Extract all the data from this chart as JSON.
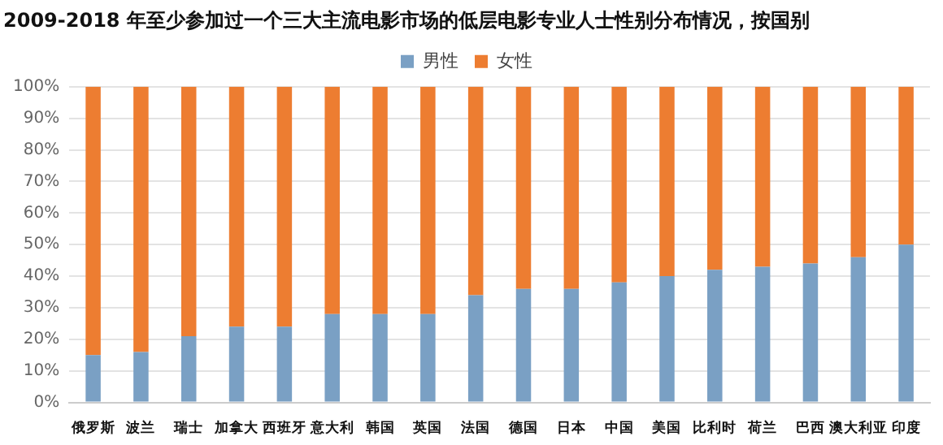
{
  "chart_data": {
    "type": "bar",
    "title": "2009-2018 年至少参加过一个三大主流电影市场的低层电影专业人士性别分布情况，按国别",
    "categories": [
      "俄罗斯",
      "波兰",
      "瑞士",
      "加拿大",
      "西班牙",
      "意大利",
      "韩国",
      "英国",
      "法国",
      "德国",
      "日本",
      "中国",
      "美国",
      "比利时",
      "荷兰",
      "巴西",
      "澳大利亚",
      "印度"
    ],
    "series": [
      {
        "name": "男性",
        "color": "#7aa0c4",
        "values": [
          15,
          16,
          21,
          24,
          24,
          28,
          28,
          28,
          34,
          36,
          36,
          38,
          40,
          42,
          43,
          44,
          46,
          50
        ]
      },
      {
        "name": "女性",
        "color": "#ed7d31",
        "values": [
          85,
          84,
          79,
          76,
          76,
          72,
          72,
          72,
          66,
          64,
          64,
          62,
          60,
          58,
          57,
          56,
          54,
          50
        ]
      }
    ],
    "stacked": true,
    "ylim": [
      0,
      100
    ],
    "yticks": [
      {
        "value": 0,
        "label": "0%"
      },
      {
        "value": 10,
        "label": "10%"
      },
      {
        "value": 20,
        "label": "20%"
      },
      {
        "value": 30,
        "label": "30%"
      },
      {
        "value": 40,
        "label": "40%"
      },
      {
        "value": 50,
        "label": "50%"
      },
      {
        "value": 60,
        "label": "60%"
      },
      {
        "value": 70,
        "label": "70%"
      },
      {
        "value": 80,
        "label": "80%"
      },
      {
        "value": 90,
        "label": "90%"
      },
      {
        "value": 100,
        "label": "100%"
      }
    ],
    "grid": "y",
    "legend": "top"
  }
}
